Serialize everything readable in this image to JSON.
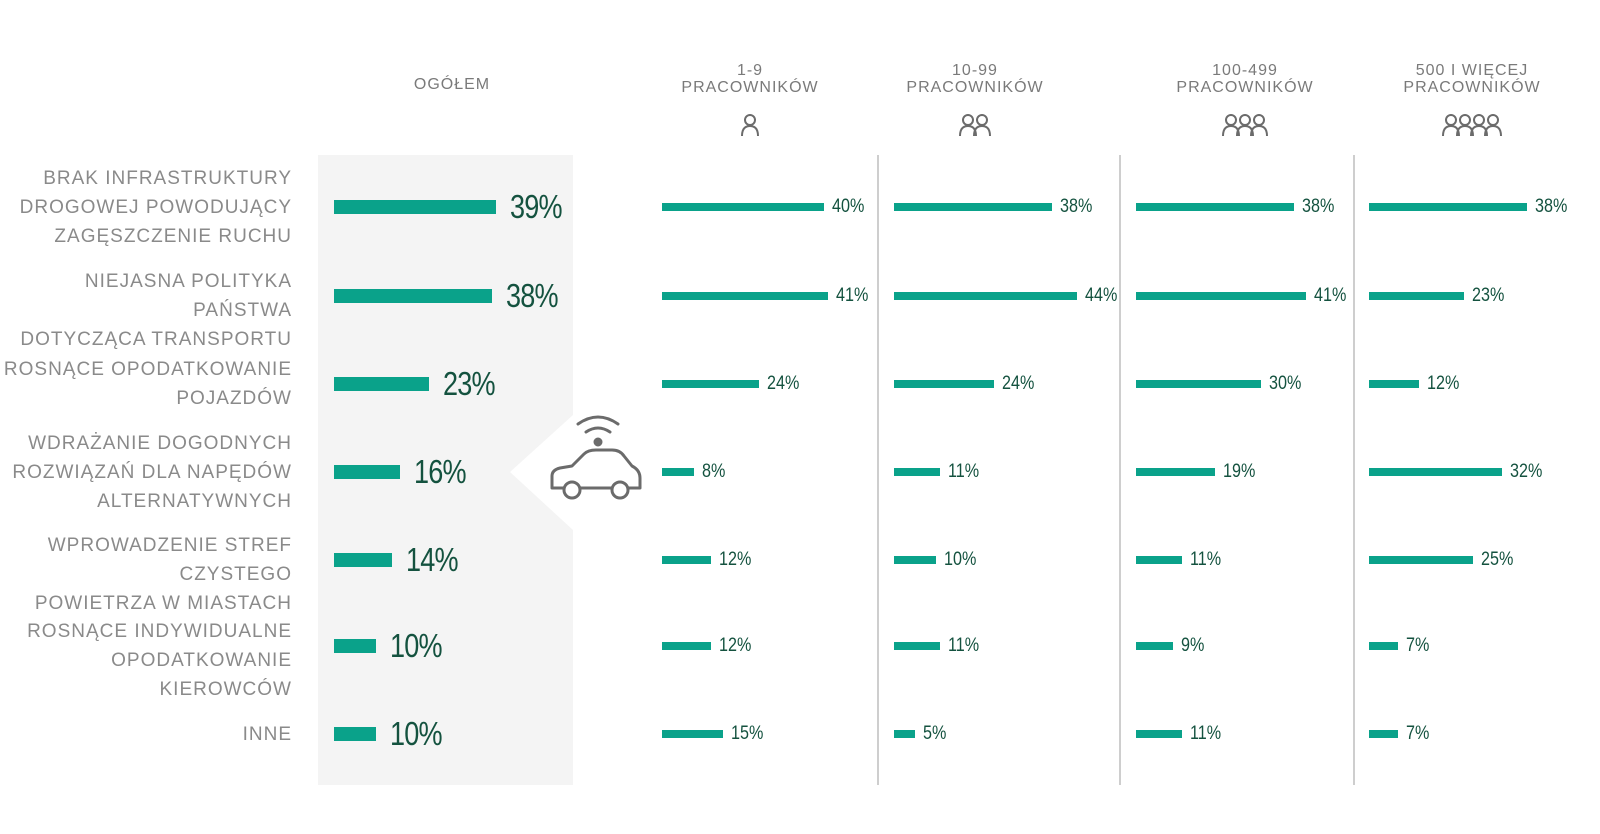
{
  "chart_data": {
    "type": "bar",
    "orientation": "horizontal",
    "categories": [
      "BRAK INFRASTRUKTURY\nDROGOWEJ POWODUJĄCY\nZAGĘSZCZENIE RUCHU",
      "NIEJASNA POLITYKA PAŃSTWA\nDOTYCZĄCA TRANSPORTU",
      "ROSNĄCE OPODATKOWANIE\nPOJAZDÓW",
      "WDRAŻANIE DOGODNYCH\nROZWIĄZAŃ DLA NAPĘDÓW\nALTERNATYWNYCH",
      "WPROWADZENIE STREF CZYSTEGO\nPOWIETRZA W MIASTACH",
      "ROSNĄCE INDYWIDUALNE\nOPODATKOWANIE KIEROWCÓW",
      "INNE"
    ],
    "series": [
      {
        "name": "OGÓŁEM",
        "values": [
          39,
          38,
          23,
          16,
          14,
          10,
          10
        ],
        "icon": "none"
      },
      {
        "name": "1-9\nPRACOWNIKÓW",
        "values": [
          40,
          41,
          24,
          8,
          12,
          12,
          15
        ],
        "icon": "person-1-icon"
      },
      {
        "name": "10-99\nPRACOWNIKÓW",
        "values": [
          38,
          44,
          24,
          11,
          10,
          11,
          5
        ],
        "icon": "person-2-icon"
      },
      {
        "name": "100-499\nPRACOWNIKÓW",
        "values": [
          38,
          41,
          30,
          19,
          11,
          9,
          11
        ],
        "icon": "person-3-icon"
      },
      {
        "name": "500 I WIĘCEJ\nPRACOWNIKÓW",
        "values": [
          38,
          23,
          12,
          32,
          25,
          7,
          7
        ],
        "icon": "person-4-icon"
      }
    ],
    "value_suffix": "%",
    "xlim": [
      0,
      50
    ],
    "grid": false,
    "legend": "top",
    "colors": {
      "bar": "#0aa28a",
      "value": "#14523f",
      "label": "#8a8a8a",
      "panel": "#f4f4f4",
      "divider": "#bdbdbd"
    },
    "decoration": "connected-car-icon"
  }
}
